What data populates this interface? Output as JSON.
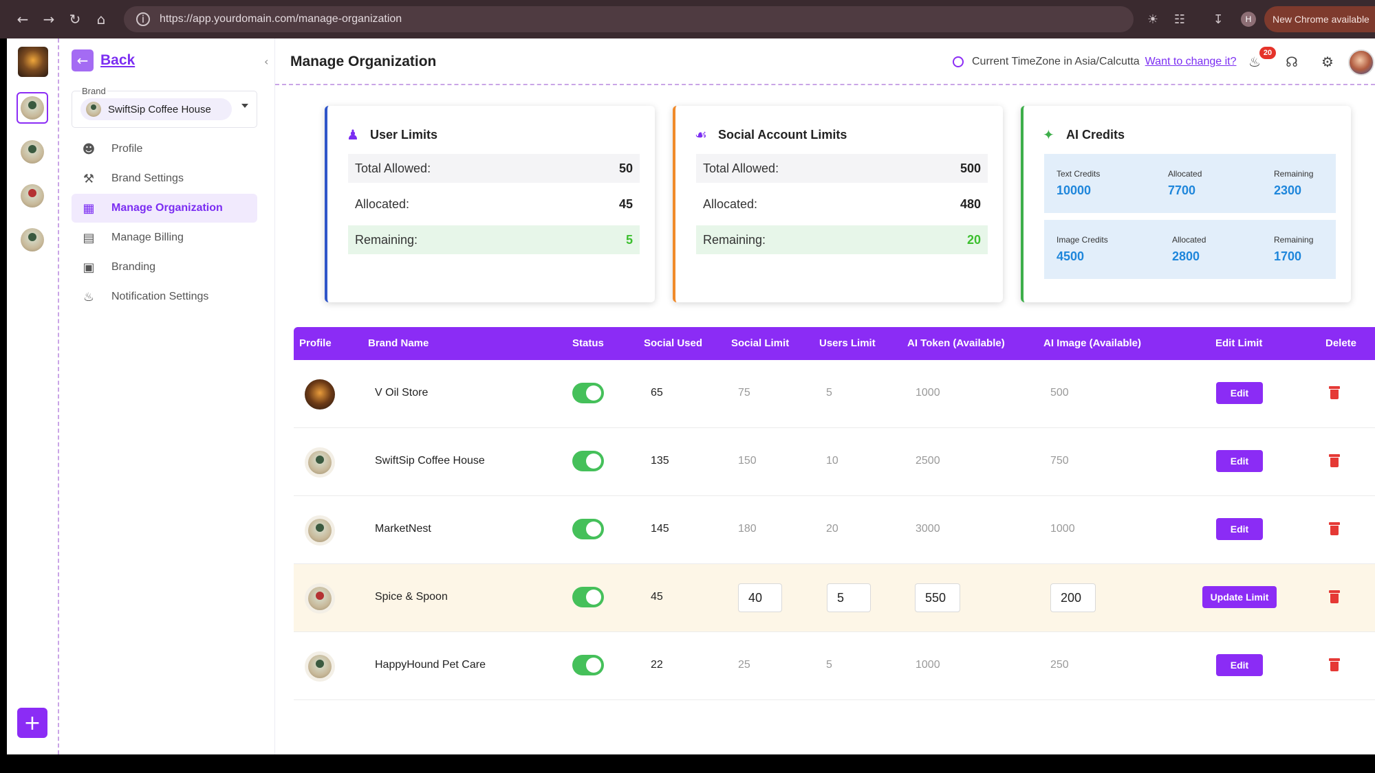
{
  "browser": {
    "url": "https://app.yourdomain.com/manage-organization",
    "profile_initial": "H",
    "new_chrome": "New Chrome available"
  },
  "sidebar": {
    "back_label": "Back",
    "brand_caption": "Brand",
    "brand_selected": "SwiftSip Coffee House",
    "items": [
      {
        "label": "Profile",
        "icon": "user-circle-icon"
      },
      {
        "label": "Brand Settings",
        "icon": "wrench-icon"
      },
      {
        "label": "Manage Organization",
        "icon": "building-icon"
      },
      {
        "label": "Manage Billing",
        "icon": "credit-card-icon"
      },
      {
        "label": "Branding",
        "icon": "window-icon"
      },
      {
        "label": "Notification Settings",
        "icon": "bell-icon"
      }
    ]
  },
  "header": {
    "title": "Manage Organization",
    "timezone_text": "Current TimeZone in Asia/Calcutta",
    "change_link": "Want to change it?",
    "notification_count": "20"
  },
  "user_limits": {
    "title": "User Limits",
    "total_label": "Total Allowed:",
    "total": "50",
    "allocated_label": "Allocated:",
    "allocated": "45",
    "remaining_label": "Remaining:",
    "remaining": "5"
  },
  "social_limits": {
    "title": "Social Account Limits",
    "total_label": "Total Allowed:",
    "total": "500",
    "allocated_label": "Allocated:",
    "allocated": "480",
    "remaining_label": "Remaining:",
    "remaining": "20"
  },
  "ai_credits": {
    "title": "AI Credits",
    "text": {
      "label": "Text Credits",
      "value": "10000",
      "allocated_label": "Allocated",
      "allocated": "7700",
      "remaining_label": "Remaining",
      "remaining": "2300"
    },
    "image": {
      "label": "Image Credits",
      "value": "4500",
      "allocated_label": "Allocated",
      "allocated": "2800",
      "remaining_label": "Remaining",
      "remaining": "1700"
    }
  },
  "table": {
    "headers": [
      "Profile",
      "Brand Name",
      "Status",
      "Social Used",
      "Social Limit",
      "Users Limit",
      "AI Token (Available)",
      "AI Image (Available)",
      "Edit Limit",
      "Delete"
    ],
    "edit_label": "Edit",
    "update_label": "Update Limit",
    "rows": [
      {
        "brand": "V Oil Store",
        "social_used": "65",
        "social_limit": "75",
        "users_limit": "5",
        "ai_token": "1000",
        "ai_image": "500"
      },
      {
        "brand": "SwiftSip Coffee House",
        "social_used": "135",
        "social_limit": "150",
        "users_limit": "10",
        "ai_token": "2500",
        "ai_image": "750"
      },
      {
        "brand": "MarketNest",
        "social_used": "145",
        "social_limit": "180",
        "users_limit": "20",
        "ai_token": "3000",
        "ai_image": "1000"
      },
      {
        "brand": "Spice & Spoon",
        "social_used": "45",
        "social_limit": "40",
        "users_limit": "5",
        "ai_token": "550",
        "ai_image": "200"
      },
      {
        "brand": "HappyHound Pet Care",
        "social_used": "22",
        "social_limit": "25",
        "users_limit": "5",
        "ai_token": "1000",
        "ai_image": "250"
      }
    ]
  }
}
